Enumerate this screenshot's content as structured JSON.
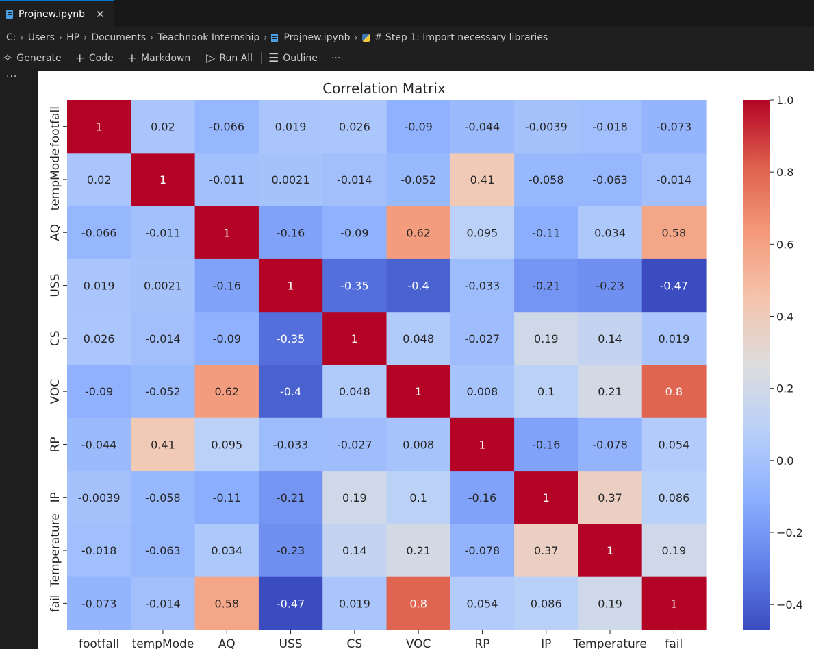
{
  "tab": {
    "label": "Projnew.ipynb",
    "close": "✕",
    "icon": "notebook-icon"
  },
  "breadcrumb": {
    "items": [
      "C:",
      "Users",
      "HP",
      "Documents",
      "Teachnook Internship",
      "Projnew.ipynb",
      "# Step 1: Import necessary libraries"
    ],
    "separator": "›"
  },
  "toolbar": {
    "generate": "Generate",
    "code": "Code",
    "markdown": "Markdown",
    "run_all": "Run All",
    "outline": "Outline",
    "more": "···"
  },
  "gutter": {
    "more": "···"
  },
  "chart_data": {
    "type": "heatmap",
    "title": "Correlation Matrix",
    "rows": [
      "footfall",
      "tempMode",
      "AQ",
      "USS",
      "CS",
      "VOC",
      "RP",
      "IP",
      "Temperature",
      "fail"
    ],
    "columns": [
      "footfall",
      "tempMode",
      "AQ",
      "USS",
      "CS",
      "VOC",
      "RP",
      "IP",
      "Temperature",
      "fail"
    ],
    "values": [
      [
        "1",
        "0.02",
        "-0.066",
        "0.019",
        "0.026",
        "-0.09",
        "-0.044",
        "-0.0039",
        "-0.018",
        "-0.073"
      ],
      [
        "0.02",
        "1",
        "-0.011",
        "0.0021",
        "-0.014",
        "-0.052",
        "0.41",
        "-0.058",
        "-0.063",
        "-0.014"
      ],
      [
        "-0.066",
        "-0.011",
        "1",
        "-0.16",
        "-0.09",
        "0.62",
        "0.095",
        "-0.11",
        "0.034",
        "0.58"
      ],
      [
        "0.019",
        "0.0021",
        "-0.16",
        "1",
        "-0.35",
        "-0.4",
        "-0.033",
        "-0.21",
        "-0.23",
        "-0.47"
      ],
      [
        "0.026",
        "-0.014",
        "-0.09",
        "-0.35",
        "1",
        "0.048",
        "-0.027",
        "0.19",
        "0.14",
        "0.019"
      ],
      [
        "-0.09",
        "-0.052",
        "0.62",
        "-0.4",
        "0.048",
        "1",
        "0.008",
        "0.1",
        "0.21",
        "0.8"
      ],
      [
        "-0.044",
        "0.41",
        "0.095",
        "-0.033",
        "-0.027",
        "0.008",
        "1",
        "-0.16",
        "-0.078",
        "0.054"
      ],
      [
        "-0.0039",
        "-0.058",
        "-0.11",
        "-0.21",
        "0.19",
        "0.1",
        "-0.16",
        "1",
        "0.37",
        "0.086"
      ],
      [
        "-0.018",
        "-0.063",
        "0.034",
        "-0.23",
        "0.14",
        "0.21",
        "-0.078",
        "0.37",
        "1",
        "0.19"
      ],
      [
        "-0.073",
        "-0.014",
        "0.58",
        "-0.47",
        "0.019",
        "0.8",
        "0.054",
        "0.086",
        "0.19",
        "1"
      ]
    ],
    "colormap": "coolwarm",
    "vmin": -0.47,
    "vmax": 1.0,
    "colorbar_ticks": [
      "1.0",
      "0.8",
      "0.6",
      "0.4",
      "0.2",
      "0.0",
      "−0.2",
      "−0.4"
    ],
    "colorbar_tick_values": [
      1.0,
      0.8,
      0.6,
      0.4,
      0.2,
      0.0,
      -0.2,
      -0.4
    ],
    "legend": "colorbar-right"
  }
}
